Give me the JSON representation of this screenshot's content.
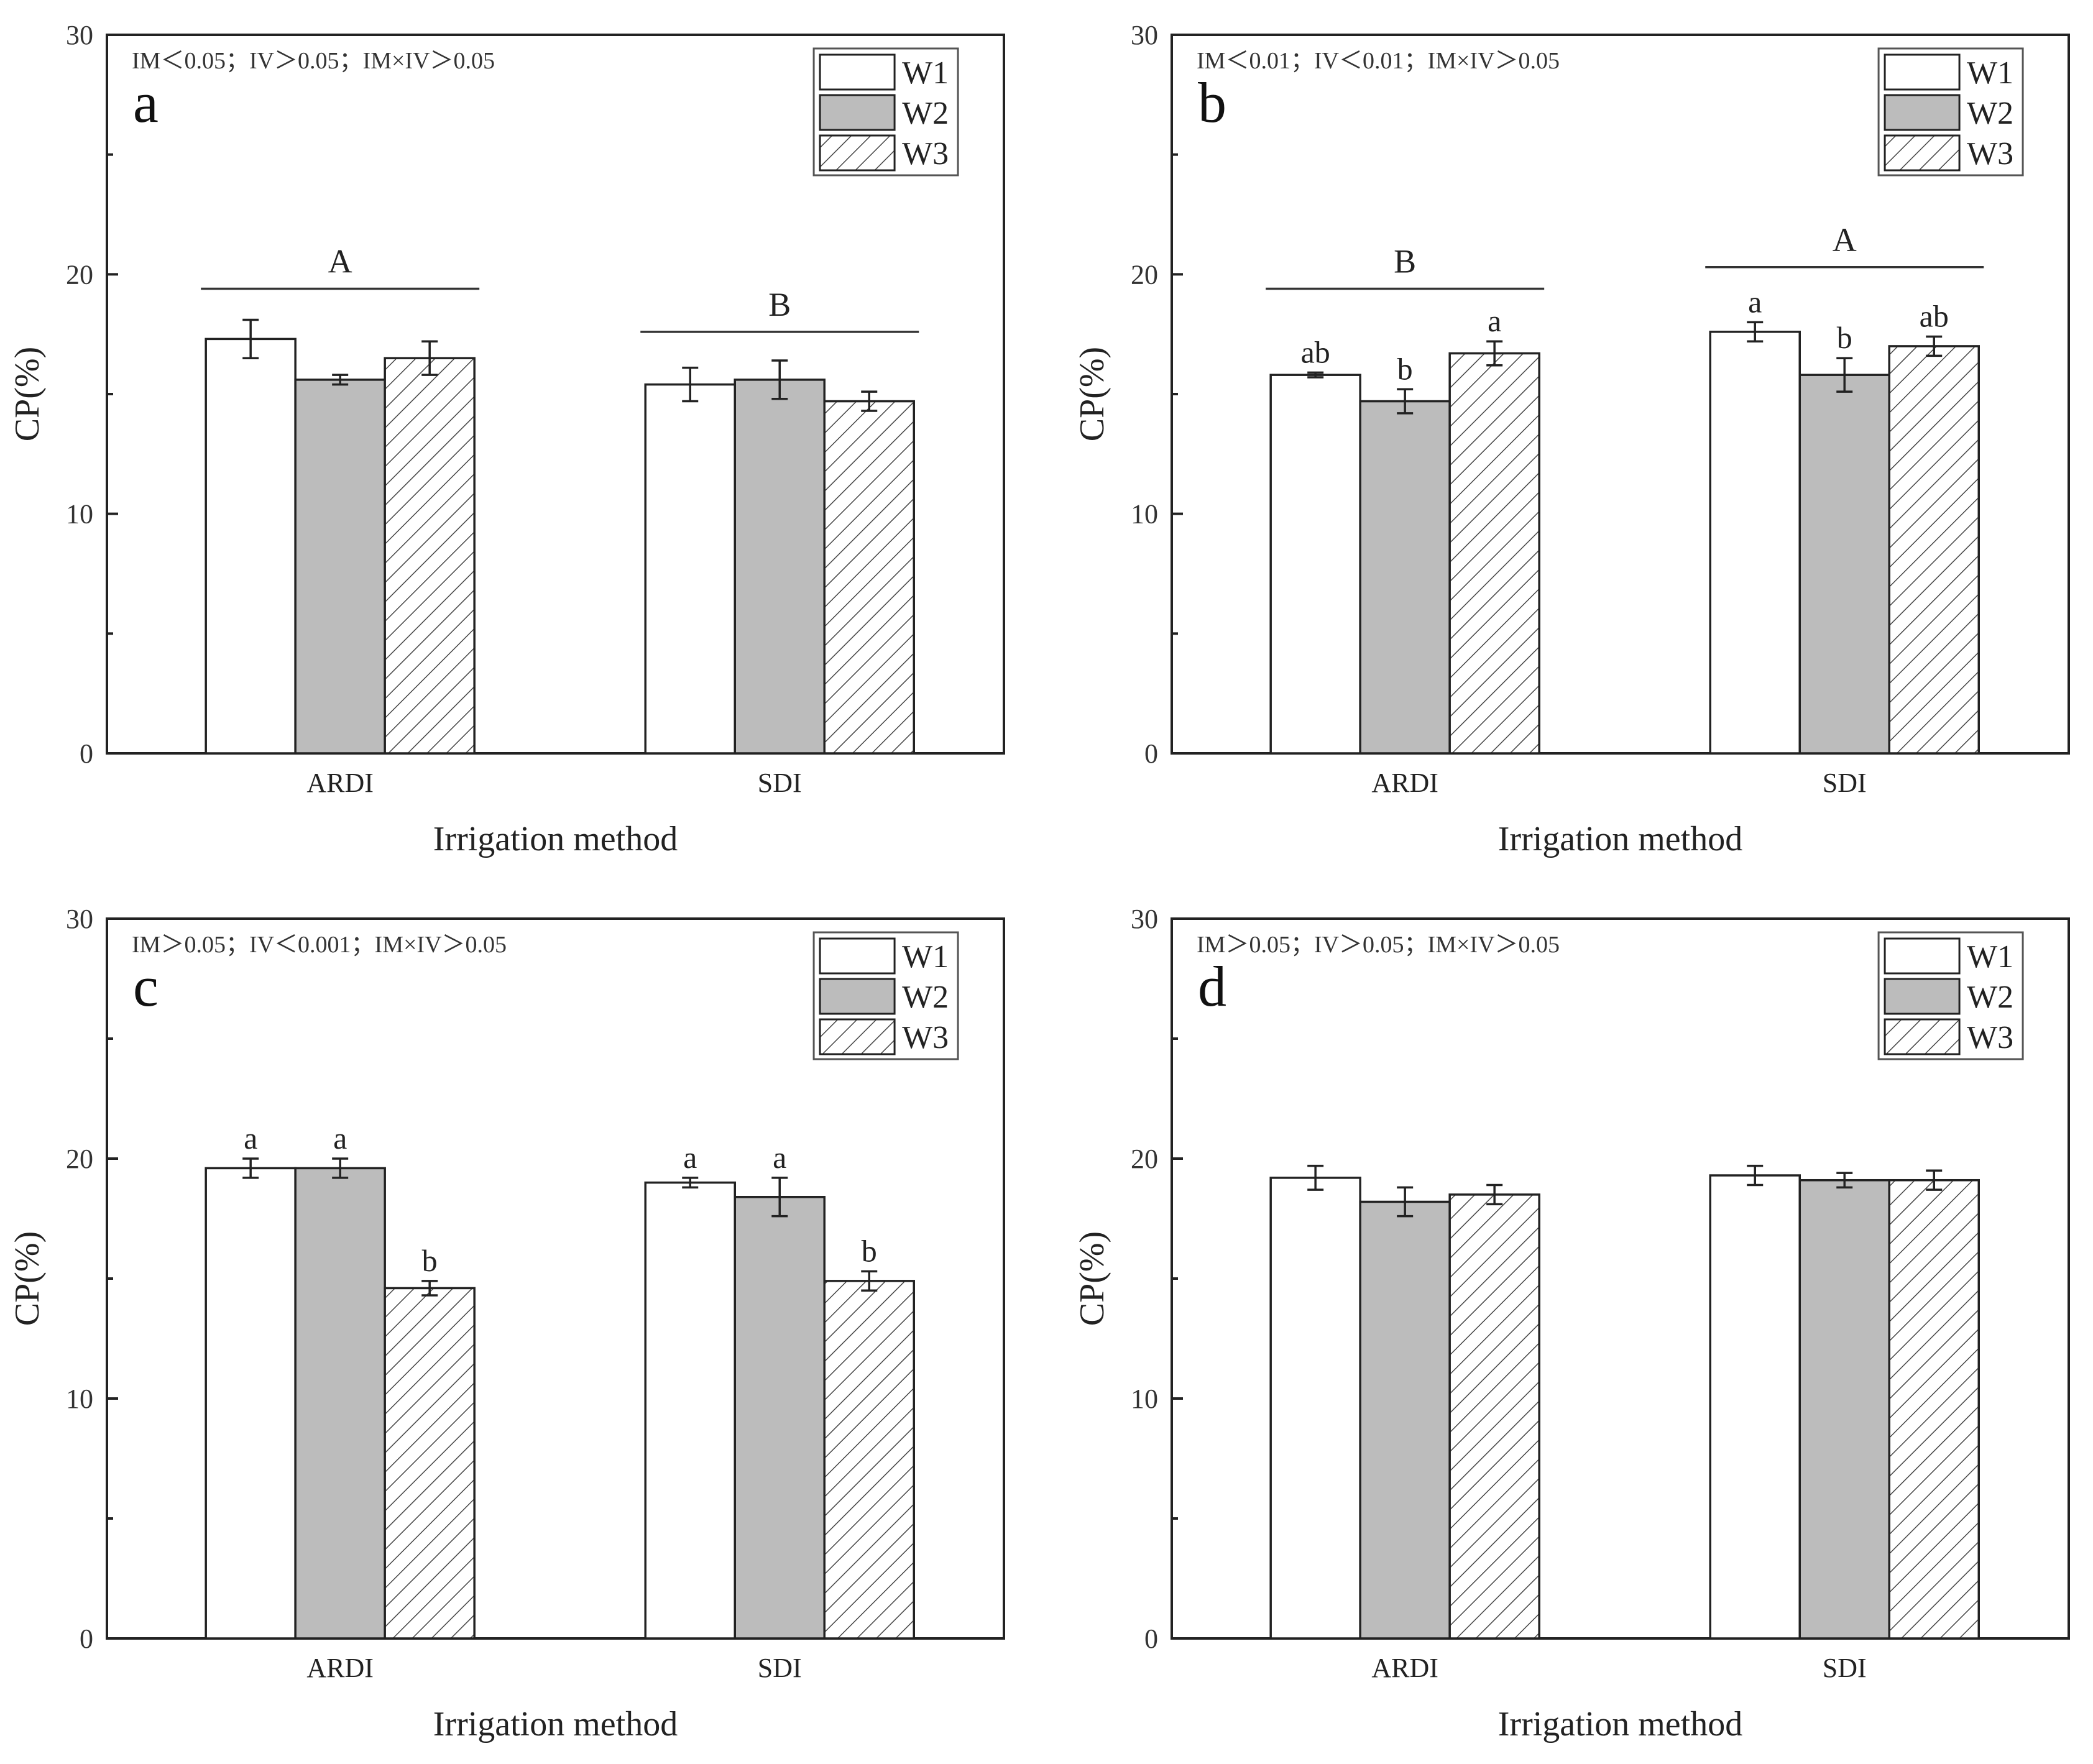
{
  "colors": {
    "W1": "#ffffff",
    "W2": "#bcbcbc",
    "W3_hatch": "#444444",
    "frame": "#222222"
  },
  "legend_entries": [
    "W1",
    "W2",
    "W3"
  ],
  "chart_data": [
    {
      "type": "bar",
      "panel": "a",
      "stats_text": "IM＜0.05；IV＞0.05；IM×IV＞0.05",
      "xlabel": "Irrigation method",
      "ylabel": "CP(%)",
      "ylim": [
        0,
        30
      ],
      "yticks": [
        "0",
        "10",
        "20",
        "30"
      ],
      "categories": [
        "ARDI",
        "SDI"
      ],
      "series": [
        {
          "name": "W1",
          "values": [
            17.3,
            15.4
          ],
          "errors": [
            0.8,
            0.7
          ],
          "letters": [
            "",
            ""
          ]
        },
        {
          "name": "W2",
          "values": [
            15.6,
            15.6
          ],
          "errors": [
            0.2,
            0.8
          ],
          "letters": [
            "",
            ""
          ]
        },
        {
          "name": "W3",
          "values": [
            16.5,
            14.7
          ],
          "errors": [
            0.7,
            0.4
          ],
          "letters": [
            "",
            ""
          ]
        }
      ],
      "group_letters": [
        {
          "category": "ARDI",
          "text": "A",
          "line_y": 19.4
        },
        {
          "category": "SDI",
          "text": "B",
          "line_y": 17.6
        }
      ]
    },
    {
      "type": "bar",
      "panel": "b",
      "stats_text": "IM＜0.01；IV＜0.01；IM×IV＞0.05",
      "xlabel": "Irrigation method",
      "ylabel": "CP(%)",
      "ylim": [
        0,
        30
      ],
      "yticks": [
        "0",
        "10",
        "20",
        "30"
      ],
      "categories": [
        "ARDI",
        "SDI"
      ],
      "series": [
        {
          "name": "W1",
          "values": [
            15.8,
            17.6
          ],
          "errors": [
            0.1,
            0.4
          ],
          "letters": [
            "ab",
            "a"
          ]
        },
        {
          "name": "W2",
          "values": [
            14.7,
            15.8
          ],
          "errors": [
            0.5,
            0.7
          ],
          "letters": [
            "b",
            "b"
          ]
        },
        {
          "name": "W3",
          "values": [
            16.7,
            17.0
          ],
          "errors": [
            0.5,
            0.4
          ],
          "letters": [
            "a",
            "ab"
          ]
        }
      ],
      "group_letters": [
        {
          "category": "ARDI",
          "text": "B",
          "line_y": 19.4
        },
        {
          "category": "SDI",
          "text": "A",
          "line_y": 20.3
        }
      ]
    },
    {
      "type": "bar",
      "panel": "c",
      "stats_text": "IM＞0.05；IV＜0.001；IM×IV＞0.05",
      "xlabel": "Irrigation method",
      "ylabel": "CP(%)",
      "ylim": [
        0,
        30
      ],
      "yticks": [
        "0",
        "10",
        "20",
        "30"
      ],
      "categories": [
        "ARDI",
        "SDI"
      ],
      "series": [
        {
          "name": "W1",
          "values": [
            19.6,
            19.0
          ],
          "errors": [
            0.4,
            0.2
          ],
          "letters": [
            "a",
            "a"
          ]
        },
        {
          "name": "W2",
          "values": [
            19.6,
            18.4
          ],
          "errors": [
            0.4,
            0.8
          ],
          "letters": [
            "a",
            "a"
          ]
        },
        {
          "name": "W3",
          "values": [
            14.6,
            14.9
          ],
          "errors": [
            0.3,
            0.4
          ],
          "letters": [
            "b",
            "b"
          ]
        }
      ],
      "group_letters": []
    },
    {
      "type": "bar",
      "panel": "d",
      "stats_text": "IM＞0.05；IV＞0.05；IM×IV＞0.05",
      "xlabel": "Irrigation method",
      "ylabel": "CP(%)",
      "ylim": [
        0,
        30
      ],
      "yticks": [
        "0",
        "10",
        "20",
        "30"
      ],
      "categories": [
        "ARDI",
        "SDI"
      ],
      "series": [
        {
          "name": "W1",
          "values": [
            19.2,
            19.3
          ],
          "errors": [
            0.5,
            0.4
          ],
          "letters": [
            "",
            ""
          ]
        },
        {
          "name": "W2",
          "values": [
            18.2,
            19.1
          ],
          "errors": [
            0.6,
            0.3
          ],
          "letters": [
            "",
            ""
          ]
        },
        {
          "name": "W3",
          "values": [
            18.5,
            19.1
          ],
          "errors": [
            0.4,
            0.4
          ],
          "letters": [
            "",
            ""
          ]
        }
      ],
      "group_letters": []
    }
  ]
}
